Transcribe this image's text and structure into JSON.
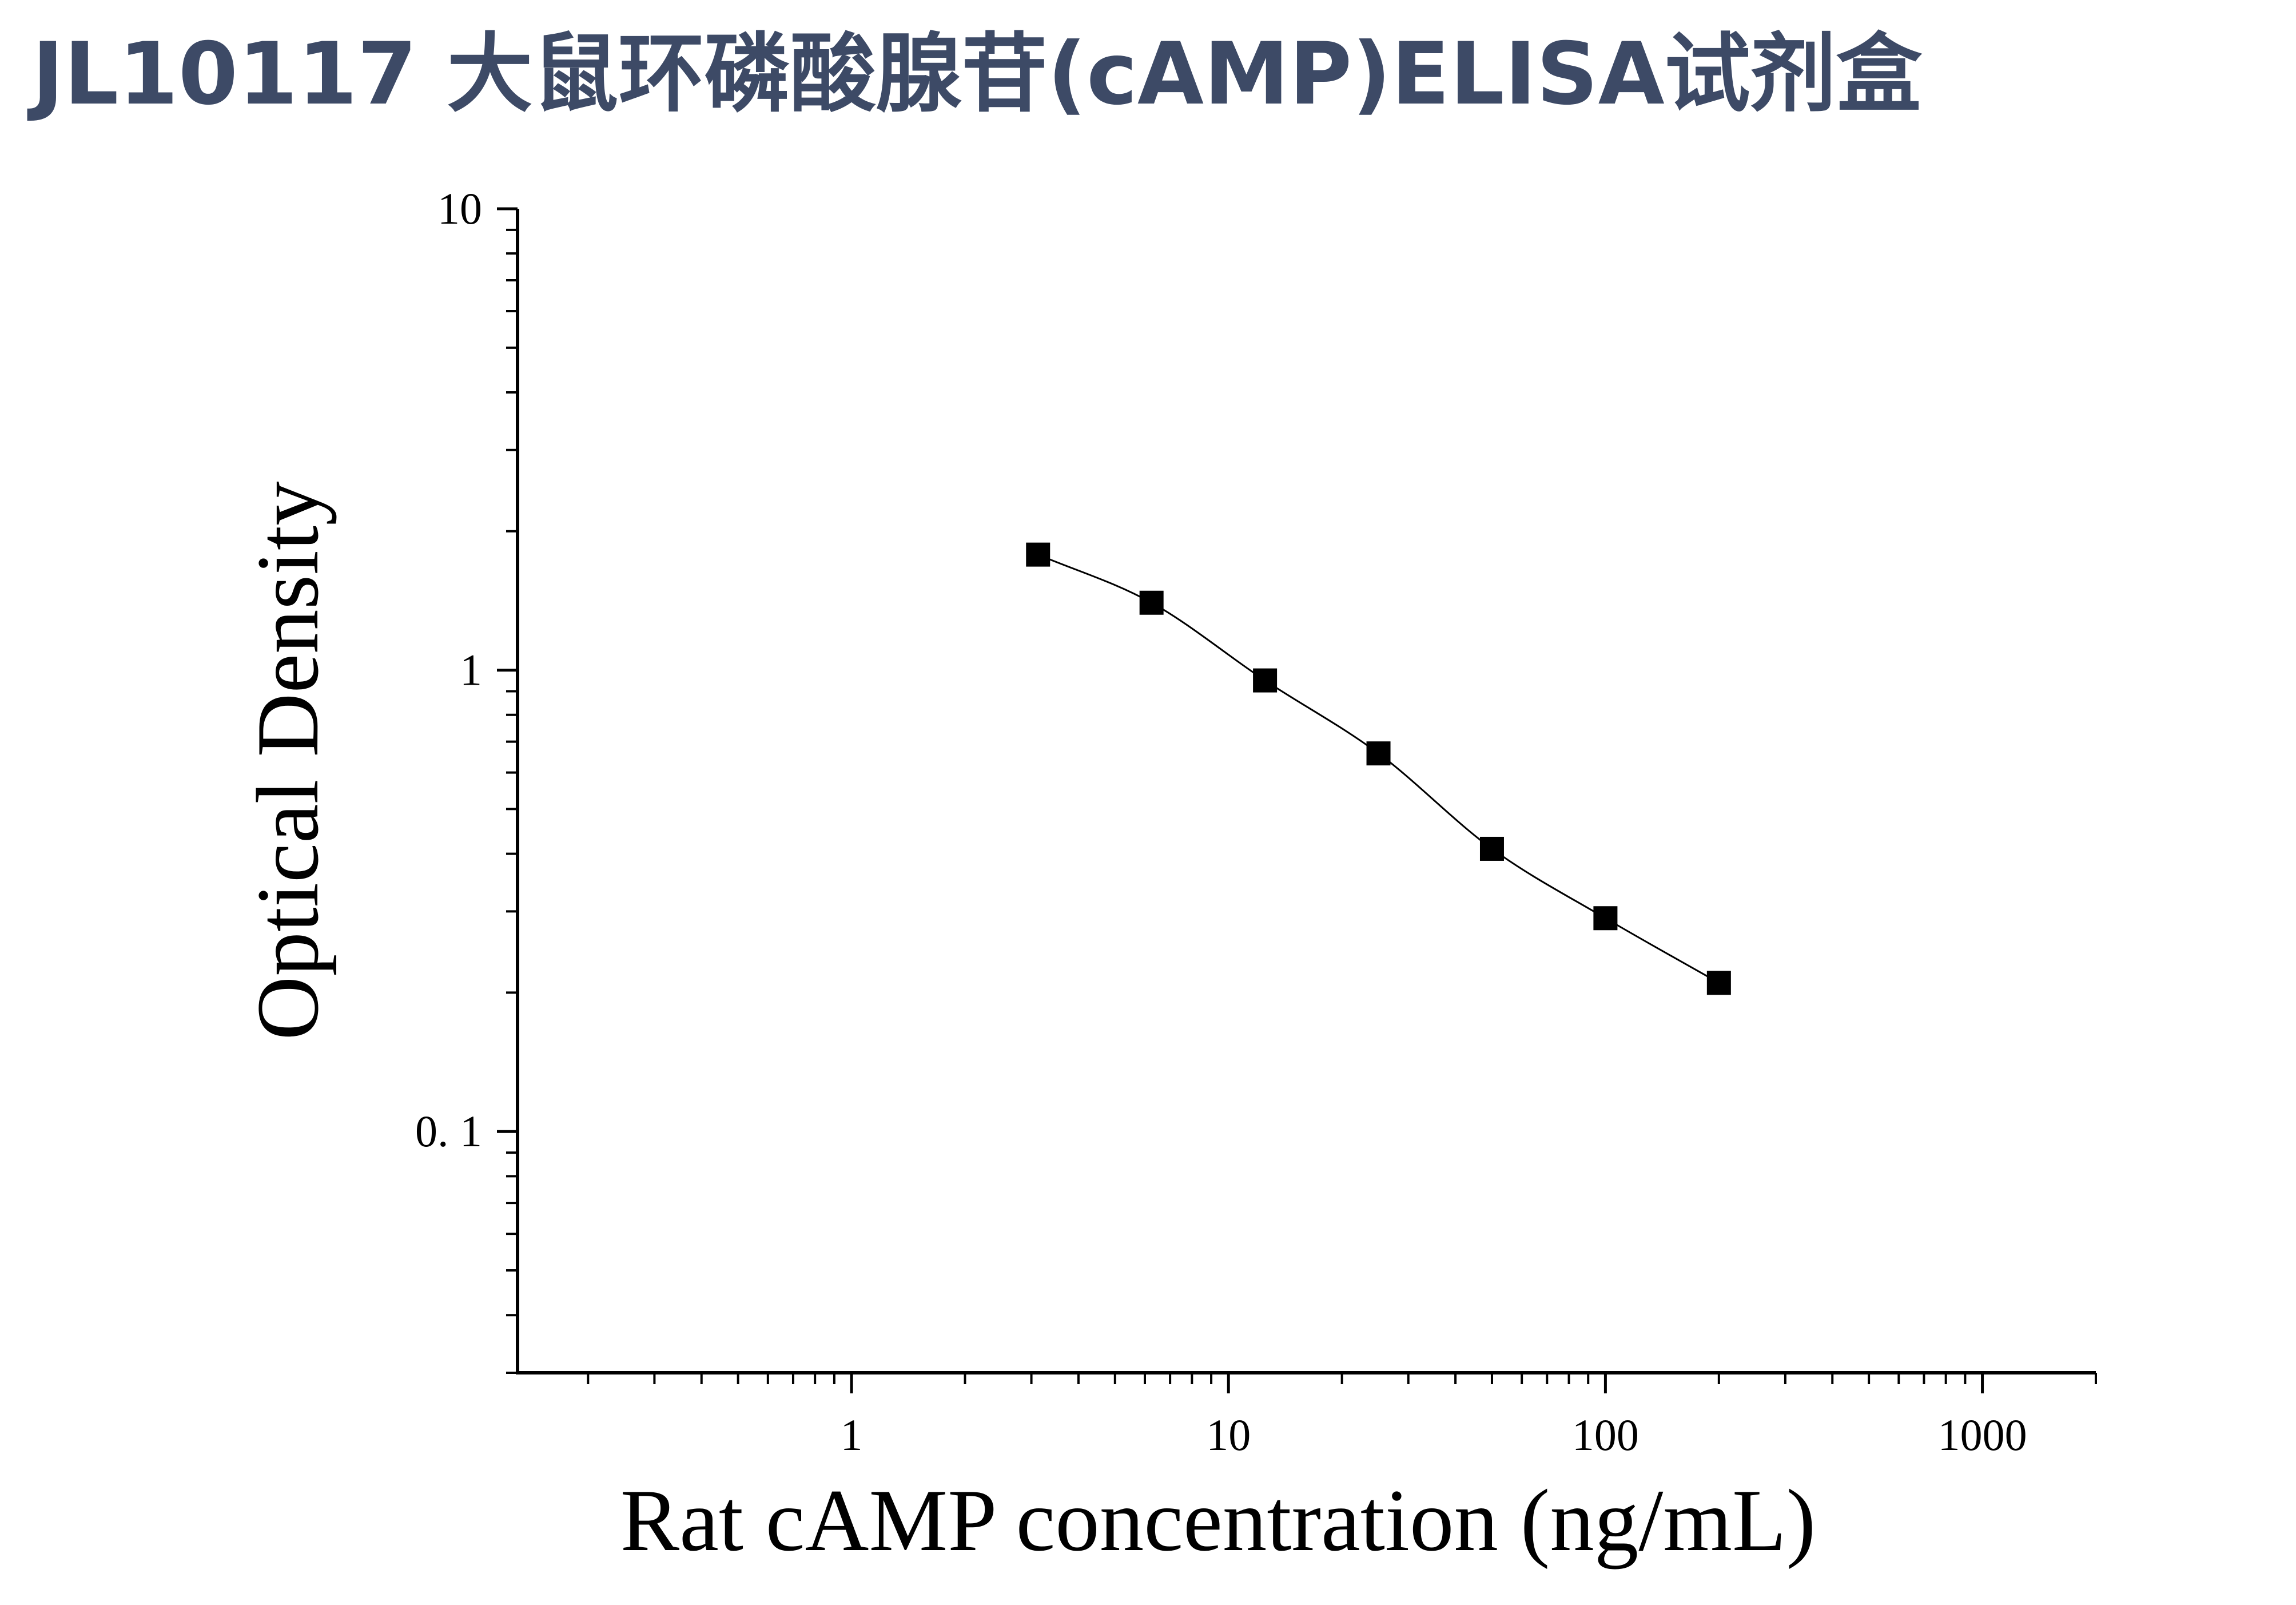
{
  "page": {
    "title": "JL10117 大鼠环磷酸腺苷(cAMP)ELISA试剂盒"
  },
  "chart_data": {
    "type": "scatter",
    "xlabel": "Rat cAMP concentration (ng/mL)",
    "ylabel": "Optical Density",
    "x_scale": "log",
    "y_scale": "log",
    "xlim": [
      0.13,
      2000
    ],
    "ylim": [
      0.03,
      10
    ],
    "x_tick_labels": [
      "1",
      "10",
      "100",
      "1000"
    ],
    "y_tick_labels": [
      "0. 1",
      "1",
      "10"
    ],
    "grid": false,
    "series": [
      {
        "marker": "square",
        "fit_line": true,
        "x": [
          3.125,
          6.25,
          12.5,
          25,
          50,
          100,
          200
        ],
        "y": [
          1.78,
          1.4,
          0.95,
          0.66,
          0.41,
          0.29,
          0.21
        ]
      }
    ],
    "colors": {
      "marker": "#000000",
      "line": "#000000",
      "title": "#3d4a66"
    }
  }
}
